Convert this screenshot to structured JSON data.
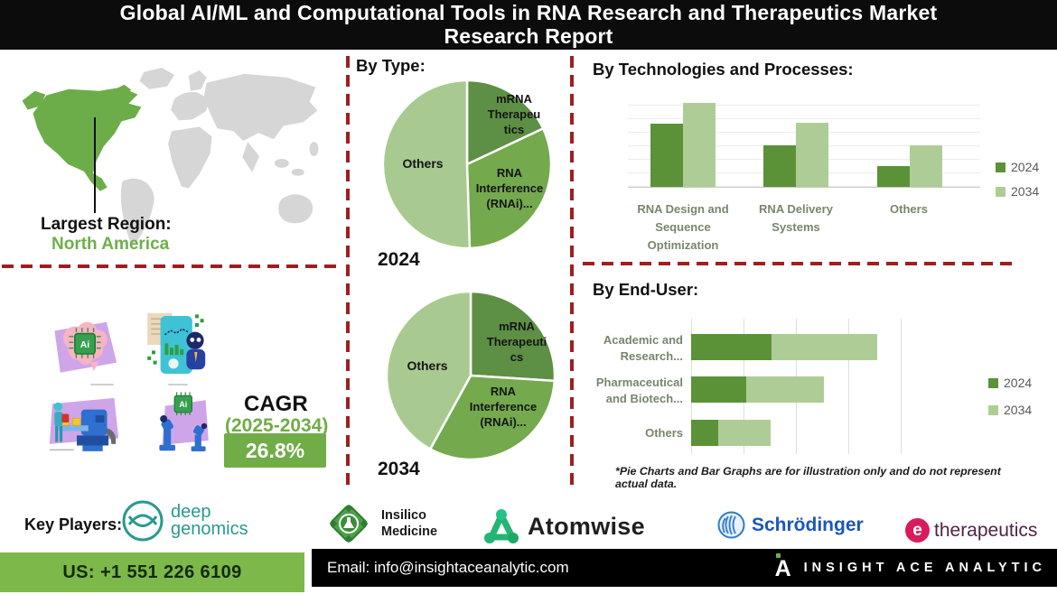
{
  "title": "Global AI/ML and Computational Tools in RNA Research and Therapeutics Market\nResearch Report",
  "map": {
    "largest_region_label": "Largest Region:",
    "largest_region_value": "North America"
  },
  "sections": {
    "by_type_heading": "By Type:"
  },
  "cagr": {
    "label": "CAGR",
    "period": "(2025-2034)",
    "value": "26.8%"
  },
  "disclaimer": "*Pie Charts and Bar Graphs are for illustration only and do not represent actual data.",
  "chart_data": [
    {
      "type": "pie",
      "year_label": "2024",
      "labels": [
        "mRNA\nTherapeu\ntics",
        "RNA\nInterference\n(RNAi)...",
        "Others"
      ],
      "clean_labels": [
        "mRNA Therapeutics",
        "RNA Interference (RNAi)",
        "Others"
      ],
      "values": [
        18,
        31.5,
        50.5
      ],
      "units": "percent (illustrative only)",
      "colors": [
        "#5d8f44",
        "#74a94e",
        "#a8ca90"
      ]
    },
    {
      "type": "pie",
      "year_label": "2034",
      "labels": [
        "mRNA\nTherapeuti\ncs",
        "RNA\nInterference\n(RNAi)...",
        "Others"
      ],
      "clean_labels": [
        "mRNA Therapeutics",
        "RNA Interference (RNAi)",
        "Others"
      ],
      "values": [
        26,
        32,
        42
      ],
      "units": "percent (illustrative only)",
      "colors": [
        "#5d8f44",
        "#74a94e",
        "#a8ca90"
      ]
    },
    {
      "type": "bar",
      "title": "By Technologies and Processes:",
      "categories": [
        "RNA Design and\nSequence\nOptimization",
        "RNA Delivery\nSystems",
        "Others"
      ],
      "series": [
        {
          "name": "2024",
          "color": "#5b9237",
          "values": [
            67,
            44,
            22
          ]
        },
        {
          "name": "2034",
          "color": "#aecd96",
          "values": [
            89,
            68,
            44
          ]
        }
      ],
      "ylim": [
        0,
        100
      ],
      "units": "relative (illustrative only)",
      "grid": "horizontal",
      "legend_position": "right"
    },
    {
      "type": "bar",
      "orientation": "horizontal-stacked",
      "title": "By End-User:",
      "categories": [
        "Academic and\nResearch...",
        "Pharmaceutical\nand Biotech...",
        "Others"
      ],
      "series": [
        {
          "name": "2024",
          "color": "#5b9237",
          "values": [
            38,
            26,
            13
          ]
        },
        {
          "name": "2034",
          "color": "#aecd96",
          "values": [
            50,
            37,
            25
          ]
        }
      ],
      "xlim": [
        0,
        100
      ],
      "units": "relative (illustrative only)",
      "grid": "vertical",
      "legend_position": "right"
    }
  ],
  "key_players": {
    "label": "Key Players:",
    "companies": [
      {
        "name": "Deep Genomics",
        "display": "deep\ngenomics"
      },
      {
        "name": "Insilico Medicine",
        "display": "Insilico\nMedicine"
      },
      {
        "name": "Atomwise",
        "display": "Atomwise"
      },
      {
        "name": "Schrödinger",
        "display": "Schrödinger"
      },
      {
        "name": "e-therapeutics",
        "icon_letter": "e",
        "display": "therapeutics"
      }
    ]
  },
  "footer": {
    "phone": "US: +1 551 226 6109",
    "email": "Email: info@insightaceanalytic.com",
    "brand": "INSIGHT ACE ANALYTIC"
  },
  "colors": {
    "green_dark": "#5b9237",
    "green_mid": "#74a94e",
    "green_light": "#aecd96",
    "pie_light": "#a8ca90",
    "map_green": "#6cad49",
    "map_gray": "#d6d6d6",
    "dashed_red": "#9e1f1f",
    "cagr_green": "#70ad47",
    "footer_green": "#7db84a"
  }
}
